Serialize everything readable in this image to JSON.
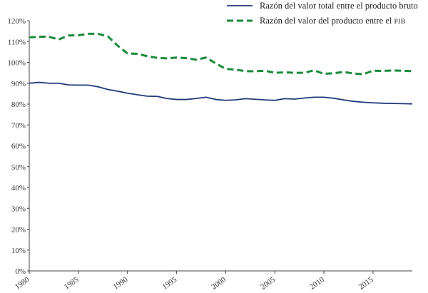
{
  "chart_data": {
    "type": "line",
    "title": "",
    "xlabel": "",
    "ylabel": "",
    "xlim": [
      1980,
      2019
    ],
    "ylim": [
      0,
      120
    ],
    "grid": false,
    "legend_placement": "top-right",
    "x_ticks": [
      1980,
      1985,
      1990,
      1995,
      2000,
      2005,
      2010,
      2015
    ],
    "x_tick_labels": [
      "1980",
      "1985",
      "1990",
      "1995",
      "2000",
      "2005",
      "2010",
      "2015"
    ],
    "y_ticks": [
      0,
      10,
      20,
      30,
      40,
      50,
      60,
      70,
      80,
      90,
      100,
      110,
      120
    ],
    "y_tick_labels": [
      "0%",
      "10%",
      "20%",
      "30%",
      "40%",
      "50%",
      "60%",
      "70%",
      "80%",
      "90%",
      "100%",
      "110%",
      "120%"
    ],
    "x": [
      1980,
      1981,
      1982,
      1983,
      1984,
      1985,
      1986,
      1987,
      1988,
      1989,
      1990,
      1991,
      1992,
      1993,
      1994,
      1995,
      1996,
      1997,
      1998,
      1999,
      2000,
      2001,
      2002,
      2003,
      2004,
      2005,
      2006,
      2007,
      2008,
      2009,
      2010,
      2011,
      2012,
      2013,
      2014,
      2015,
      2016,
      2017,
      2018,
      2019
    ],
    "series": [
      {
        "name": "Razón del valor total entre el producto bruto",
        "legend_label_main": "Razón del valor total entre el producto bruto",
        "legend_label_smallcaps": "",
        "color": "#1f3a7a",
        "line_style": "solid",
        "values": [
          90.0,
          90.4,
          90.0,
          90.0,
          89.2,
          89.1,
          89.1,
          88.3,
          87.0,
          86.2,
          85.2,
          84.5,
          83.8,
          83.7,
          82.7,
          82.2,
          82.2,
          82.7,
          83.3,
          82.2,
          81.8,
          82.0,
          82.6,
          82.3,
          82.0,
          81.8,
          82.6,
          82.4,
          82.9,
          83.3,
          83.3,
          82.8,
          82.0,
          81.3,
          80.9,
          80.6,
          80.4,
          80.3,
          80.2,
          80.1
        ]
      },
      {
        "name": "Razón del valor del producto entre el pib",
        "legend_label_main": "Razón del valor del producto entre el ",
        "legend_label_smallcaps": "pib",
        "color": "#1a8a3a",
        "line_style": "dashed",
        "values": [
          112.0,
          112.3,
          112.3,
          111.0,
          112.9,
          113.0,
          113.7,
          113.7,
          112.5,
          108.0,
          104.3,
          104.1,
          103.0,
          102.2,
          101.9,
          102.3,
          102.0,
          101.3,
          102.3,
          99.5,
          96.9,
          96.5,
          95.8,
          95.7,
          96.0,
          95.0,
          95.2,
          95.0,
          95.0,
          96.2,
          94.5,
          94.8,
          95.4,
          94.7,
          94.3,
          96.0,
          95.9,
          96.1,
          96.0,
          95.8
        ]
      }
    ]
  }
}
